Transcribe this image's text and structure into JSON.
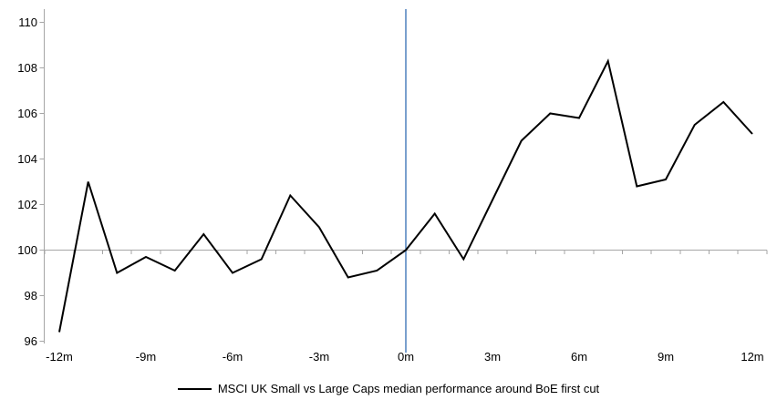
{
  "chart_data": {
    "type": "line",
    "x_months": [
      -12,
      -11,
      -10,
      -9,
      -8,
      -7,
      -6,
      -5,
      -4,
      -3,
      -2,
      -1,
      0,
      1,
      2,
      3,
      4,
      5,
      6,
      7,
      8,
      9,
      10,
      11,
      12
    ],
    "series": [
      {
        "name": "MSCI UK Small vs Large Caps median performance around BoE first cut",
        "values": [
          96.4,
          103.0,
          99.0,
          99.7,
          99.1,
          100.7,
          99.0,
          99.6,
          102.4,
          101.0,
          98.8,
          99.1,
          100.0,
          101.6,
          99.6,
          102.2,
          104.8,
          106.0,
          105.8,
          108.3,
          102.8,
          103.1,
          105.5,
          106.5,
          105.1
        ]
      }
    ],
    "title": "",
    "xlabel": "",
    "ylabel": "",
    "y_ticks": [
      96,
      98,
      100,
      102,
      104,
      106,
      108,
      110
    ],
    "ylim": [
      96,
      110
    ],
    "xlim": [
      -12.5,
      12.5
    ],
    "x_tick_months": [
      -12,
      -9,
      -6,
      -3,
      0,
      3,
      6,
      9,
      12
    ],
    "x_tick_labels": [
      "-12m",
      "-9m",
      "-6m",
      "-3m",
      "0m",
      "3m",
      "6m",
      "9m",
      "12m"
    ],
    "baseline_value": 100,
    "event_line_month": 0,
    "grid": "baseline-only",
    "legend_position": "bottom-center",
    "colors": {
      "series": "#000000",
      "event_line": "#4e81bd",
      "axis": "#a6a6a6",
      "text": "#000000",
      "background": "#ffffff"
    }
  },
  "legend": {
    "label": "MSCI UK Small vs Large Caps median performance around BoE first cut"
  }
}
